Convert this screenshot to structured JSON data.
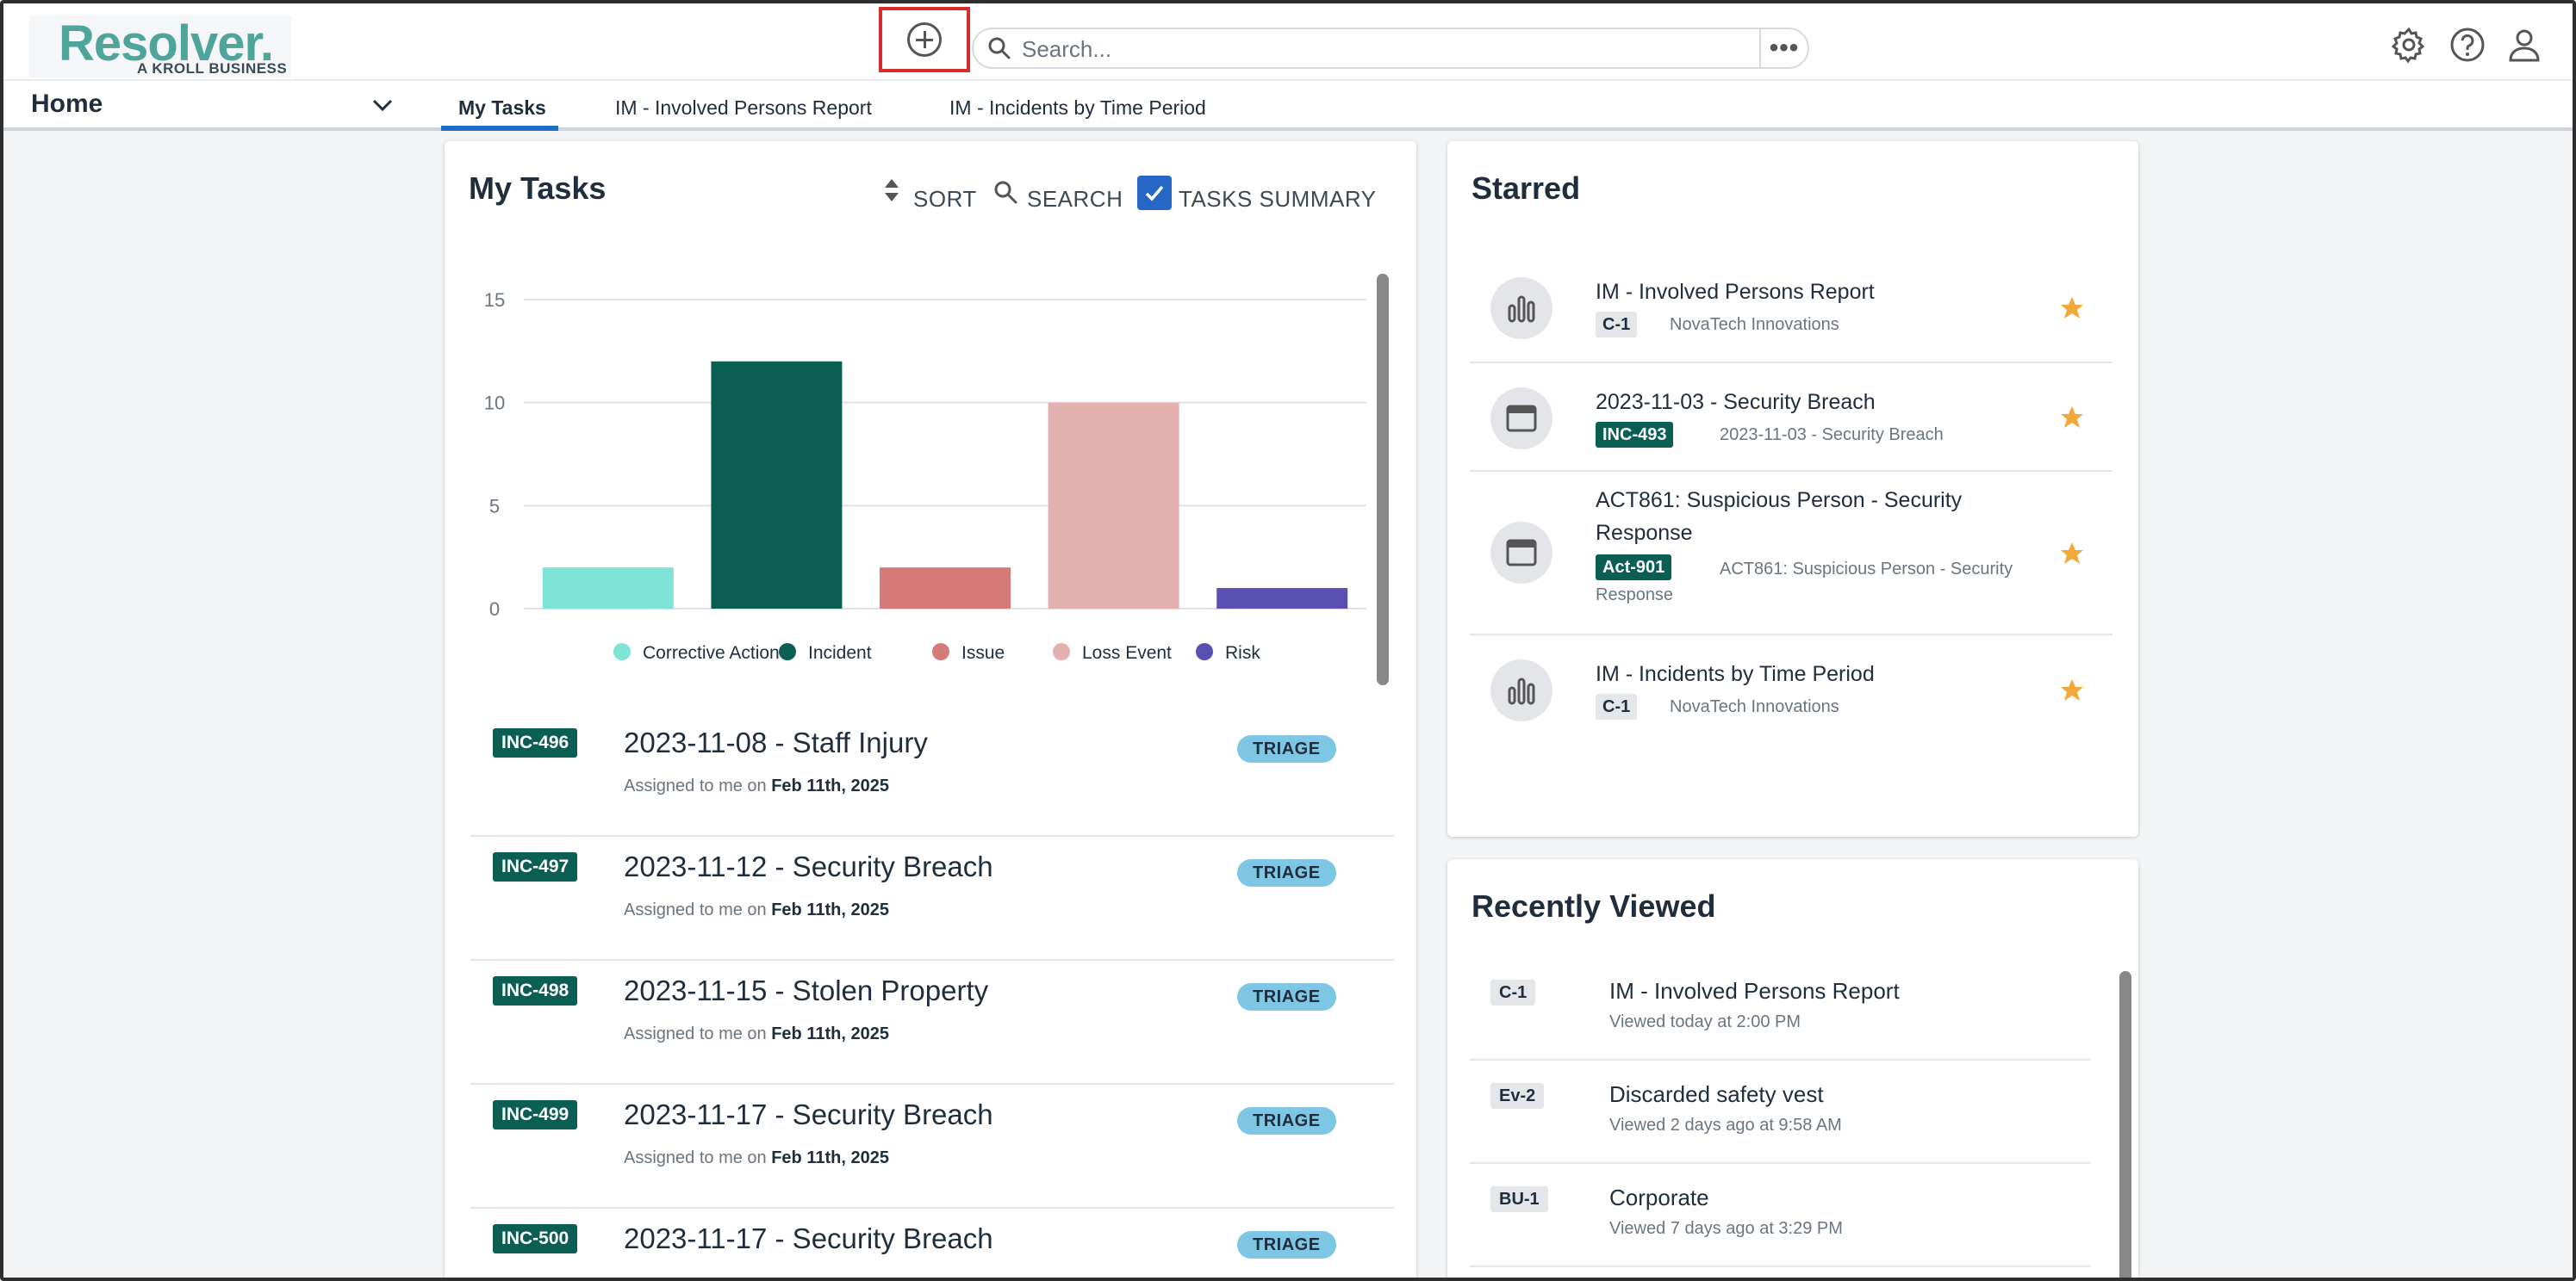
{
  "brand": {
    "name": "Resolver.",
    "tagline": "A KROLL BUSINESS"
  },
  "search": {
    "placeholder": "Search...",
    "more": "•••"
  },
  "icons": {
    "add": "add-circle-icon",
    "search": "search-icon",
    "settings": "gear-icon",
    "help": "help-icon",
    "user": "user-icon",
    "chevron": "chevron-down-icon",
    "star": "star-icon"
  },
  "nav": {
    "home": "Home",
    "tabs": [
      {
        "label": "My Tasks",
        "active": true
      },
      {
        "label": "IM - Involved Persons Report",
        "active": false
      },
      {
        "label": "IM - Incidents by Time Period",
        "active": false
      }
    ]
  },
  "tasks_card": {
    "title": "My Tasks",
    "sort": "SORT",
    "search": "SEARCH",
    "summary": "TASKS SUMMARY",
    "summary_checked": true
  },
  "chart_data": {
    "type": "bar",
    "categories": [
      "Corrective Action",
      "Incident",
      "Issue",
      "Loss Event",
      "Risk"
    ],
    "values": [
      2,
      12,
      2,
      10,
      1
    ],
    "colors": [
      "#7fe3d6",
      "#0b5e52",
      "#d57a78",
      "#e4b1b1",
      "#5a4fb3"
    ],
    "yticks": [
      0,
      5,
      10,
      15
    ],
    "ylim": [
      0,
      15
    ],
    "grid": true,
    "legend": "bottom"
  },
  "tasks": [
    {
      "id": "INC-496",
      "title": "2023-11-08 - Staff Injury",
      "meta_prefix": "Assigned to me on",
      "date": "Feb 11th, 2025",
      "status": "TRIAGE"
    },
    {
      "id": "INC-497",
      "title": "2023-11-12 - Security Breach",
      "meta_prefix": "Assigned to me on",
      "date": "Feb 11th, 2025",
      "status": "TRIAGE"
    },
    {
      "id": "INC-498",
      "title": "2023-11-15 - Stolen Property",
      "meta_prefix": "Assigned to me on",
      "date": "Feb 11th, 2025",
      "status": "TRIAGE"
    },
    {
      "id": "INC-499",
      "title": "2023-11-17 - Security Breach",
      "meta_prefix": "Assigned to me on",
      "date": "Feb 11th, 2025",
      "status": "TRIAGE"
    },
    {
      "id": "INC-500",
      "title": "2023-11-17 - Security Breach",
      "meta_prefix": "",
      "date": "",
      "status": "TRIAGE"
    }
  ],
  "starred": {
    "title": "Starred",
    "items": [
      {
        "icon": "bar-chart-icon",
        "title": "IM - Involved Persons Report",
        "badge": "C-1",
        "sub": "NovaTech Innovations"
      },
      {
        "icon": "window-icon",
        "title": "2023-11-03 - Security Breach",
        "badge": "INC-493",
        "sub": "2023-11-03 - Security Breach"
      },
      {
        "icon": "window-icon",
        "title": "ACT861: Suspicious Person - Security Response",
        "badge": "Act-901",
        "sub": "ACT861: Suspicious Person - Security Response"
      },
      {
        "icon": "bar-chart-icon",
        "title": "IM - Incidents by Time Period",
        "badge": "C-1",
        "sub": "NovaTech Innovations"
      }
    ]
  },
  "recent": {
    "title": "Recently Viewed",
    "items": [
      {
        "badge": "C-1",
        "title": "IM - Involved Persons Report",
        "sub": "Viewed today at 2:00 PM"
      },
      {
        "badge": "Ev-2",
        "title": "Discarded safety vest",
        "sub": "Viewed 2 days ago at 9:58 AM"
      },
      {
        "badge": "BU-1",
        "title": "Corporate",
        "sub": "Viewed 7 days ago at 3:29 PM"
      }
    ]
  }
}
